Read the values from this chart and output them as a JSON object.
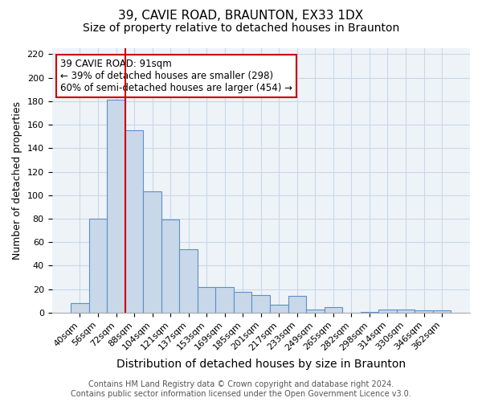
{
  "title": "39, CAVIE ROAD, BRAUNTON, EX33 1DX",
  "subtitle": "Size of property relative to detached houses in Braunton",
  "xlabel": "Distribution of detached houses by size in Braunton",
  "ylabel": "Number of detached properties",
  "categories": [
    "40sqm",
    "56sqm",
    "72sqm",
    "88sqm",
    "104sqm",
    "121sqm",
    "137sqm",
    "153sqm",
    "169sqm",
    "185sqm",
    "201sqm",
    "217sqm",
    "233sqm",
    "249sqm",
    "265sqm",
    "282sqm",
    "298sqm",
    "314sqm",
    "330sqm",
    "346sqm",
    "362sqm"
  ],
  "values": [
    8,
    80,
    181,
    155,
    103,
    79,
    54,
    22,
    22,
    18,
    15,
    7,
    14,
    3,
    5,
    0,
    1,
    3,
    3,
    2,
    2
  ],
  "bar_color": "#c8d8e8",
  "bar_edge_color": "#5b8fc9",
  "ref_line_color": "#cc0000",
  "annotation_text": "39 CAVIE ROAD: 91sqm\n← 39% of detached houses are smaller (298)\n60% of semi-detached houses are larger (454) →",
  "annotation_box_color": "white",
  "annotation_box_edge": "#cc0000",
  "ylim": [
    0,
    225
  ],
  "yticks": [
    0,
    20,
    40,
    60,
    80,
    100,
    120,
    140,
    160,
    180,
    200,
    220
  ],
  "grid_color": "#c8d8e8",
  "bg_color": "#eef3f8",
  "footnote": "Contains HM Land Registry data © Crown copyright and database right 2024.\nContains public sector information licensed under the Open Government Licence v3.0.",
  "title_fontsize": 11,
  "subtitle_fontsize": 10,
  "xlabel_fontsize": 10,
  "ylabel_fontsize": 9,
  "tick_fontsize": 8,
  "annot_fontsize": 8.5,
  "footnote_fontsize": 7
}
